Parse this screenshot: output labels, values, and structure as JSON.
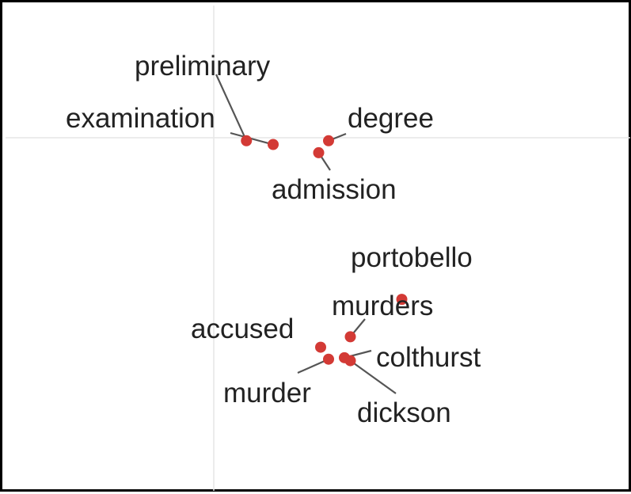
{
  "chart_data": {
    "type": "scatter",
    "title": "",
    "xlabel": "",
    "ylabel": "",
    "xlim": [
      -1.0,
      2.0
    ],
    "ylim": [
      -2.0,
      1.5
    ],
    "grid": true,
    "gridlines": {
      "x": [
        0.0
      ],
      "y": [
        -1.8,
        1.0
      ]
    },
    "point_color": "#d33a35",
    "points": [
      {
        "label": "preliminary",
        "x": 0.165,
        "y": 0.98
      },
      {
        "label": "examination",
        "x": 0.3,
        "y": 0.955
      },
      {
        "label": "degree",
        "x": 0.58,
        "y": 0.98
      },
      {
        "label": "admission",
        "x": 0.53,
        "y": 0.9
      },
      {
        "label": "portobello",
        "x": 0.95,
        "y": -0.08
      },
      {
        "label": "murders",
        "x": 0.69,
        "y": -0.33
      },
      {
        "label": "accused",
        "x": 0.54,
        "y": -0.4
      },
      {
        "label": "murder",
        "x": 0.58,
        "y": -0.48
      },
      {
        "label": "colthurst",
        "x": 0.66,
        "y": -0.47
      },
      {
        "label": "dickson",
        "x": 0.69,
        "y": -0.49
      }
    ]
  }
}
